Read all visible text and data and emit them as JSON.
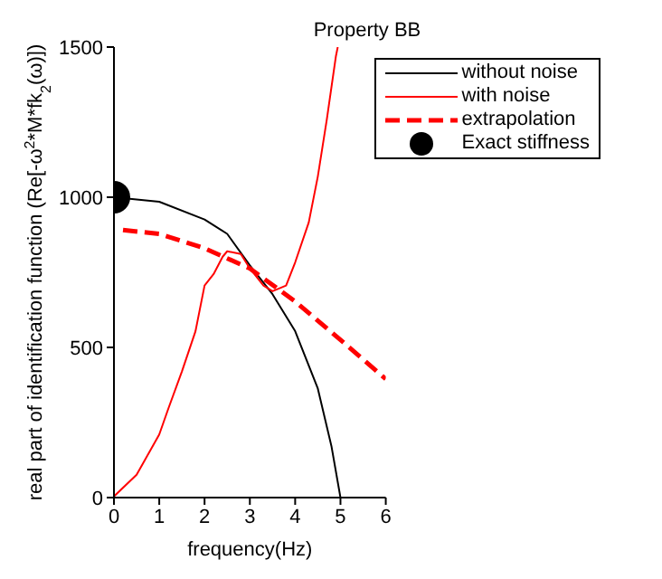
{
  "chart_data": {
    "type": "line",
    "title": "Property BB",
    "xlabel": "frequency(Hz)",
    "ylabel": "real part of identification function  (Re[-ω$^{2}$*M*fk$_{2}$(ω)])",
    "xlim": [
      0,
      6
    ],
    "xticks": [
      0,
      1,
      2,
      3,
      4,
      5,
      6
    ],
    "ylim": [
      0,
      1500
    ],
    "yticks": [
      0,
      500,
      1000,
      1500
    ],
    "grid": false,
    "legend": "top right",
    "marker": "none",
    "line_style": "solid",
    "series": [
      {
        "name": "without noise",
        "color": "#000000",
        "x": [
          0,
          1,
          2,
          2.5,
          3,
          3.5,
          4,
          4.5,
          4.8,
          5
        ],
        "values": [
          1000,
          985,
          926,
          878,
          773,
          677,
          554,
          363,
          172,
          0
        ]
      },
      {
        "name": "with noise",
        "color": "#ff0000",
        "x": [
          0,
          0.5,
          1,
          1.2,
          1.5,
          1.8,
          2,
          2.2,
          2.4,
          2.5,
          2.8,
          3,
          3.3,
          3.5,
          3.8,
          4,
          4.3,
          4.5,
          4.7,
          4.9,
          4.94
        ],
        "values": [
          4,
          76,
          210,
          296,
          420,
          554,
          706,
          744,
          802,
          820,
          811,
          763,
          706,
          687,
          706,
          783,
          916,
          1069,
          1260,
          1470,
          1500
        ]
      },
      {
        "name": "extrapolation",
        "color": "#ff0000",
        "line_style": "dashed",
        "x": [
          0.2,
          1,
          2,
          3,
          4,
          5,
          6
        ],
        "values": [
          891,
          878,
          830,
          763,
          653,
          525,
          395
        ]
      },
      {
        "name": "Exact stiffness",
        "type": "scatter",
        "marker": "circle",
        "color": "#000000",
        "x": [
          0
        ],
        "values": [
          1000
        ]
      }
    ]
  }
}
